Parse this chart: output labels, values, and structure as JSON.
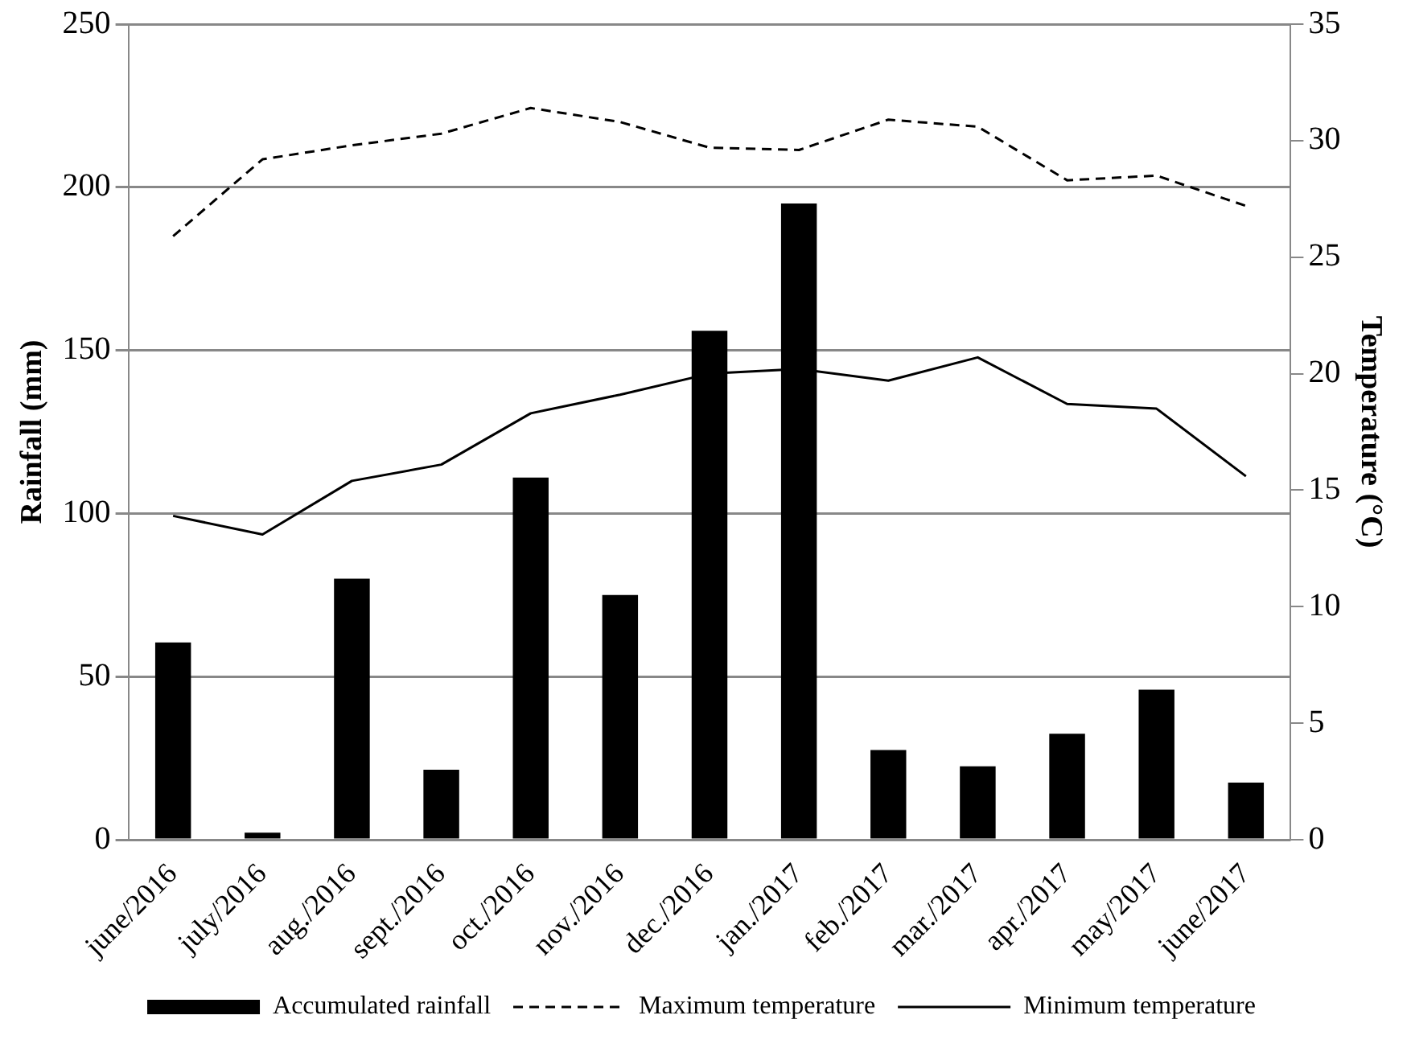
{
  "chart_data": {
    "type": "bar",
    "categories": [
      "june/2016",
      "july/2016",
      "aug./2016",
      "sept./2016",
      "oct./2016",
      "nov./2016",
      "dec./2016",
      "jan./2017",
      "feb./2017",
      "mar./2017",
      "apr./2017",
      "may/2017",
      "june/2017"
    ],
    "series": [
      {
        "name": "Accumulated rainfall",
        "color": "#000000",
        "values": [
          60.5,
          2.2,
          80,
          21.5,
          111,
          75,
          156,
          195,
          27.5,
          22.5,
          32.5,
          46,
          17.5
        ]
      },
      {
        "name": "Maximum temperature",
        "type": "line",
        "axis": "y2",
        "color": "#000000",
        "line_style": "dashed",
        "values": [
          25.9,
          29.2,
          29.8,
          30.3,
          31.4,
          30.8,
          29.7,
          29.6,
          30.9,
          30.6,
          28.3,
          28.5,
          27.2
        ]
      },
      {
        "name": "Minimum temperature",
        "type": "line",
        "axis": "y2",
        "color": "#000000",
        "line_style": "solid",
        "values": [
          13.9,
          13.1,
          15.4,
          16.1,
          18.3,
          19.1,
          20,
          20.2,
          19.7,
          20.7,
          18.7,
          18.5,
          15.6
        ]
      }
    ],
    "ylabel": "Rainfall (mm)",
    "y2label": "Temperature (°C)",
    "ylim": [
      0,
      250
    ],
    "yticks": [
      0,
      50,
      100,
      150,
      200,
      250
    ],
    "y2lim": [
      0,
      35
    ],
    "y2ticks": [
      0,
      5,
      10,
      15,
      20,
      25,
      30,
      35
    ],
    "grid": "y",
    "legend": "bottom",
    "marker": "none"
  }
}
